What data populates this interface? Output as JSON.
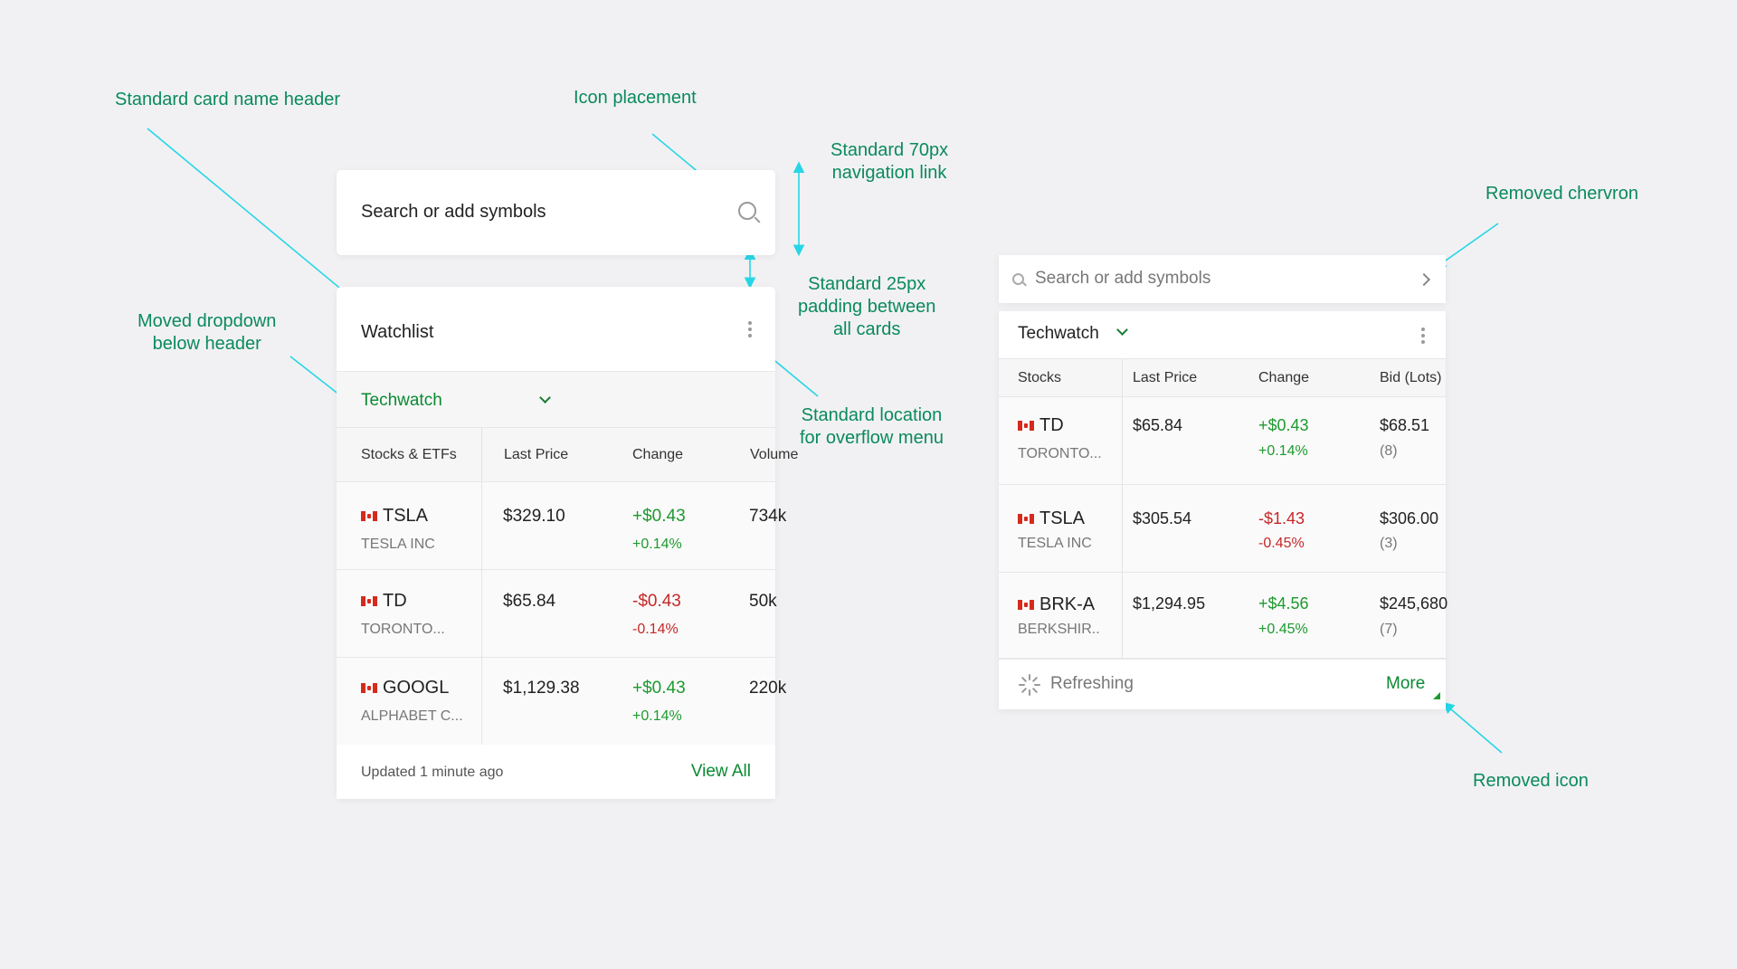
{
  "annotations": {
    "card_name_header": "Standard card name header",
    "icon_placement": "Icon placement",
    "nav_link": [
      "Standard 70px",
      "navigation link"
    ],
    "padding": [
      "Standard 25px",
      "padding between",
      "all cards"
    ],
    "dropdown": [
      "Moved dropdown",
      "below header"
    ],
    "overflow": [
      "Standard location",
      "for overflow menu"
    ],
    "removed_chevron": "Removed chervron",
    "removed_icon": "Removed icon"
  },
  "left": {
    "search_placeholder": "Search or add symbols",
    "title": "Watchlist",
    "dropdown_label": "Techwatch",
    "columns": [
      "Stocks & ETFs",
      "Last Price",
      "Change",
      "Volume"
    ],
    "rows": [
      {
        "symbol": "TSLA",
        "name": "TESLA INC",
        "price": "$329.10",
        "change": "+$0.43",
        "pct": "+0.14%",
        "volume": "734k",
        "dir": "pos"
      },
      {
        "symbol": "TD",
        "name": "TORONTO...",
        "price": "$65.84",
        "change": "-$0.43",
        "pct": "-0.14%",
        "volume": "50k",
        "dir": "neg"
      },
      {
        "symbol": "GOOGL",
        "name": "ALPHABET C...",
        "price": "$1,129.38",
        "change": "+$0.43",
        "pct": "+0.14%",
        "volume": "220k",
        "dir": "pos"
      }
    ],
    "updated": "Updated 1 minute ago",
    "view_all": "View All"
  },
  "right": {
    "search_placeholder": "Search or add symbols",
    "title": "Techwatch",
    "columns": [
      "Stocks",
      "Last Price",
      "Change",
      "Bid (Lots)"
    ],
    "rows": [
      {
        "symbol": "TD",
        "name": "TORONTO...",
        "price": "$65.84",
        "change": "+$0.43",
        "pct": "+0.14%",
        "bid": "$68.51",
        "lots": "(8)",
        "dir": "pos"
      },
      {
        "symbol": "TSLA",
        "name": "TESLA INC",
        "price": "$305.54",
        "change": "-$1.43",
        "pct": "-0.45%",
        "bid": "$306.00",
        "lots": "(3)",
        "dir": "neg"
      },
      {
        "symbol": "BRK-A",
        "name": "BERKSHIR..",
        "price": "$1,294.95",
        "change": "+$4.56",
        "pct": "+0.45%",
        "bid": "$245,680",
        "lots": "(7)",
        "dir": "pos"
      }
    ],
    "refreshing": "Refreshing",
    "more": "More"
  },
  "colors": {
    "accent": "#0a8a32",
    "annotation": "#0a8a5c",
    "line": "#27d6e6",
    "positive": "#1d9a2e",
    "negative": "#c62828"
  }
}
